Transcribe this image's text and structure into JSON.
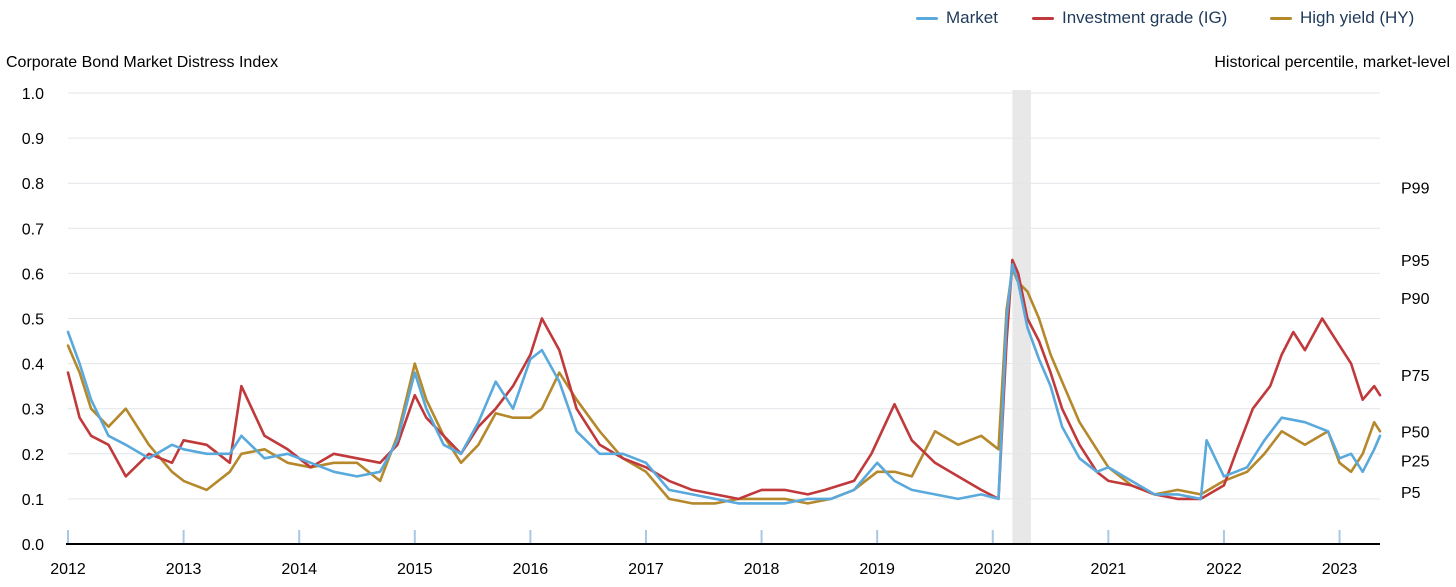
{
  "legend": {
    "market": "Market",
    "ig": "Investment grade (IG)",
    "hy": "High yield (HY)"
  },
  "titles": {
    "left": "Corporate Bond Market Distress Index",
    "right": "Historical percentile, market-level"
  },
  "chart_data": {
    "type": "line",
    "x_unit": "year",
    "ylim": [
      0.0,
      1.0
    ],
    "xlim": [
      2012.0,
      2023.35
    ],
    "yticks": [
      0.0,
      0.1,
      0.2,
      0.3,
      0.4,
      0.5,
      0.6,
      0.7,
      0.8,
      0.9,
      1.0
    ],
    "ytick_labels": [
      "0.0",
      "0.1",
      "0.2",
      "0.3",
      "0.4",
      "0.5",
      "0.6",
      "0.7",
      "0.8",
      "0.9",
      "1.0"
    ],
    "xticks": [
      2012,
      2013,
      2014,
      2015,
      2016,
      2017,
      2018,
      2019,
      2020,
      2021,
      2022,
      2023
    ],
    "xtick_labels": [
      "2012",
      "2013",
      "2014",
      "2015",
      "2016",
      "2017",
      "2018",
      "2019",
      "2020",
      "2021",
      "2022",
      "2023"
    ],
    "grid": true,
    "legend_position": "top-right",
    "shaded_region": [
      2020.17,
      2020.33
    ],
    "percentiles": [
      {
        "label": "P99",
        "y": 0.79
      },
      {
        "label": "P95",
        "y": 0.63
      },
      {
        "label": "P90",
        "y": 0.545
      },
      {
        "label": "P75",
        "y": 0.375
      },
      {
        "label": "P50",
        "y": 0.25
      },
      {
        "label": "P25",
        "y": 0.185
      },
      {
        "label": "P5",
        "y": 0.115
      }
    ],
    "colors": {
      "market": "#5aa9dd",
      "ig": "#c0393b",
      "hy": "#b5882c"
    },
    "series": [
      {
        "name": "Market",
        "key": "market",
        "x": [
          2012.0,
          2012.1,
          2012.2,
          2012.35,
          2012.5,
          2012.7,
          2012.9,
          2013.0,
          2013.2,
          2013.4,
          2013.5,
          2013.7,
          2013.9,
          2014.1,
          2014.3,
          2014.5,
          2014.7,
          2014.85,
          2015.0,
          2015.1,
          2015.25,
          2015.4,
          2015.55,
          2015.7,
          2015.85,
          2016.0,
          2016.1,
          2016.25,
          2016.4,
          2016.6,
          2016.8,
          2017.0,
          2017.2,
          2017.4,
          2017.6,
          2017.8,
          2018.0,
          2018.2,
          2018.4,
          2018.6,
          2018.8,
          2019.0,
          2019.15,
          2019.3,
          2019.5,
          2019.7,
          2019.9,
          2020.05,
          2020.12,
          2020.17,
          2020.22,
          2020.3,
          2020.4,
          2020.5,
          2020.6,
          2020.75,
          2020.9,
          2021.0,
          2021.2,
          2021.4,
          2021.6,
          2021.8,
          2021.85,
          2022.0,
          2022.2,
          2022.35,
          2022.5,
          2022.7,
          2022.9,
          2023.0,
          2023.1,
          2023.2,
          2023.3,
          2023.35
        ],
        "y": [
          0.47,
          0.4,
          0.32,
          0.24,
          0.22,
          0.19,
          0.22,
          0.21,
          0.2,
          0.2,
          0.24,
          0.19,
          0.2,
          0.18,
          0.16,
          0.15,
          0.16,
          0.23,
          0.38,
          0.3,
          0.22,
          0.2,
          0.27,
          0.36,
          0.3,
          0.41,
          0.43,
          0.36,
          0.25,
          0.2,
          0.2,
          0.18,
          0.12,
          0.11,
          0.1,
          0.09,
          0.09,
          0.09,
          0.1,
          0.1,
          0.12,
          0.18,
          0.14,
          0.12,
          0.11,
          0.1,
          0.11,
          0.1,
          0.5,
          0.62,
          0.58,
          0.48,
          0.41,
          0.35,
          0.26,
          0.19,
          0.16,
          0.17,
          0.14,
          0.11,
          0.11,
          0.1,
          0.23,
          0.15,
          0.17,
          0.23,
          0.28,
          0.27,
          0.25,
          0.19,
          0.2,
          0.16,
          0.21,
          0.24
        ]
      },
      {
        "name": "Investment grade (IG)",
        "key": "ig",
        "x": [
          2012.0,
          2012.1,
          2012.2,
          2012.35,
          2012.5,
          2012.7,
          2012.9,
          2013.0,
          2013.2,
          2013.4,
          2013.5,
          2013.7,
          2013.9,
          2014.1,
          2014.3,
          2014.5,
          2014.7,
          2014.85,
          2015.0,
          2015.1,
          2015.25,
          2015.4,
          2015.55,
          2015.7,
          2015.85,
          2016.0,
          2016.1,
          2016.25,
          2016.4,
          2016.6,
          2016.8,
          2017.0,
          2017.2,
          2017.4,
          2017.6,
          2017.8,
          2018.0,
          2018.2,
          2018.4,
          2018.55,
          2018.8,
          2018.95,
          2019.15,
          2019.3,
          2019.5,
          2019.7,
          2019.9,
          2020.05,
          2020.12,
          2020.17,
          2020.22,
          2020.3,
          2020.4,
          2020.5,
          2020.6,
          2020.75,
          2020.9,
          2021.0,
          2021.2,
          2021.4,
          2021.6,
          2021.8,
          2022.0,
          2022.1,
          2022.25,
          2022.4,
          2022.5,
          2022.6,
          2022.7,
          2022.85,
          2023.0,
          2023.1,
          2023.2,
          2023.3,
          2023.35
        ],
        "y": [
          0.38,
          0.28,
          0.24,
          0.22,
          0.15,
          0.2,
          0.18,
          0.23,
          0.22,
          0.18,
          0.35,
          0.24,
          0.21,
          0.17,
          0.2,
          0.19,
          0.18,
          0.22,
          0.33,
          0.28,
          0.24,
          0.2,
          0.26,
          0.3,
          0.35,
          0.42,
          0.5,
          0.43,
          0.3,
          0.22,
          0.19,
          0.17,
          0.14,
          0.12,
          0.11,
          0.1,
          0.12,
          0.12,
          0.11,
          0.12,
          0.14,
          0.2,
          0.31,
          0.23,
          0.18,
          0.15,
          0.12,
          0.1,
          0.45,
          0.63,
          0.6,
          0.5,
          0.45,
          0.38,
          0.3,
          0.22,
          0.16,
          0.14,
          0.13,
          0.11,
          0.1,
          0.1,
          0.13,
          0.2,
          0.3,
          0.35,
          0.42,
          0.47,
          0.43,
          0.5,
          0.44,
          0.4,
          0.32,
          0.35,
          0.33
        ]
      },
      {
        "name": "High yield (HY)",
        "key": "hy",
        "x": [
          2012.0,
          2012.1,
          2012.2,
          2012.35,
          2012.5,
          2012.7,
          2012.9,
          2013.0,
          2013.2,
          2013.4,
          2013.5,
          2013.7,
          2013.9,
          2014.1,
          2014.3,
          2014.5,
          2014.7,
          2014.85,
          2015.0,
          2015.1,
          2015.25,
          2015.4,
          2015.55,
          2015.7,
          2015.85,
          2016.0,
          2016.1,
          2016.25,
          2016.4,
          2016.6,
          2016.8,
          2017.0,
          2017.2,
          2017.4,
          2017.6,
          2017.8,
          2018.0,
          2018.2,
          2018.4,
          2018.6,
          2018.8,
          2019.0,
          2019.15,
          2019.3,
          2019.5,
          2019.7,
          2019.9,
          2020.05,
          2020.12,
          2020.17,
          2020.22,
          2020.3,
          2020.4,
          2020.5,
          2020.6,
          2020.75,
          2020.9,
          2021.0,
          2021.2,
          2021.4,
          2021.6,
          2021.8,
          2022.0,
          2022.2,
          2022.35,
          2022.5,
          2022.7,
          2022.9,
          2023.0,
          2023.1,
          2023.2,
          2023.3,
          2023.35
        ],
        "y": [
          0.44,
          0.38,
          0.3,
          0.26,
          0.3,
          0.22,
          0.16,
          0.14,
          0.12,
          0.16,
          0.2,
          0.21,
          0.18,
          0.17,
          0.18,
          0.18,
          0.14,
          0.24,
          0.4,
          0.32,
          0.24,
          0.18,
          0.22,
          0.29,
          0.28,
          0.28,
          0.3,
          0.38,
          0.32,
          0.25,
          0.19,
          0.16,
          0.1,
          0.09,
          0.09,
          0.1,
          0.1,
          0.1,
          0.09,
          0.1,
          0.12,
          0.16,
          0.16,
          0.15,
          0.25,
          0.22,
          0.24,
          0.21,
          0.52,
          0.61,
          0.58,
          0.56,
          0.5,
          0.42,
          0.36,
          0.27,
          0.21,
          0.17,
          0.13,
          0.11,
          0.12,
          0.11,
          0.14,
          0.16,
          0.2,
          0.25,
          0.22,
          0.25,
          0.18,
          0.16,
          0.2,
          0.27,
          0.25
        ]
      }
    ]
  }
}
